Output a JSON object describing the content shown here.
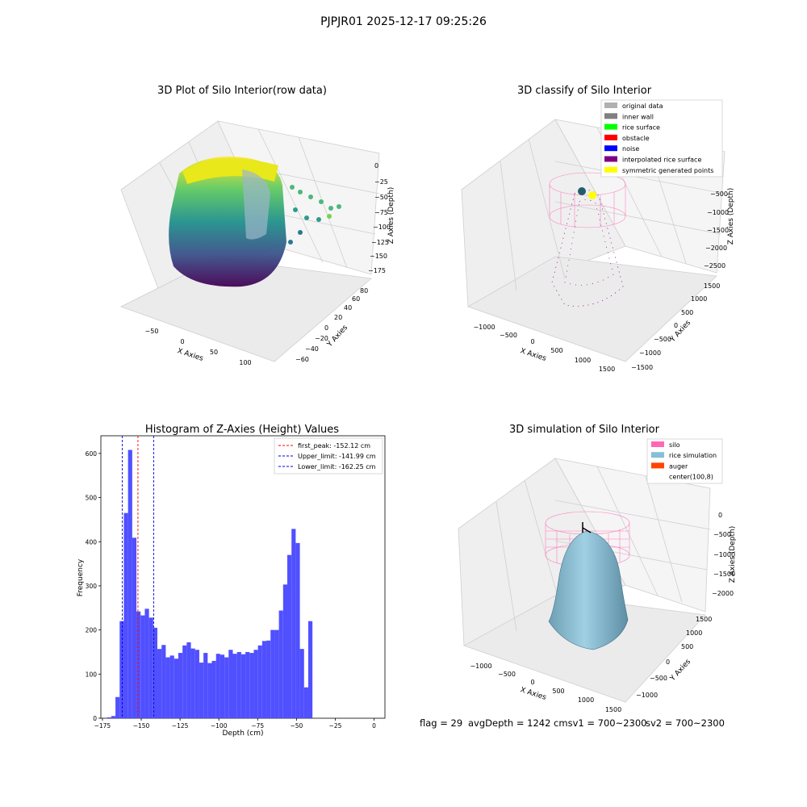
{
  "suptitle": "PJPJR01 2025-12-17 09:25:26",
  "footer": {
    "flag": "flag = 29",
    "avg_depth": "avgDepth = 1242 cmsv1 = 700~2300",
    "sv2": "sv2 = 700~2300"
  },
  "colors": {
    "hist_bar": "#4c4cff",
    "peak_line": "#ff0000",
    "limit_line": "#0000dd",
    "silo": "#ff69b4",
    "rice": "#87bfd6",
    "auger": "#ff4500"
  },
  "chart_data": [
    {
      "type": "scatter",
      "subtype": "3d",
      "title": "3D Plot of Silo Interior(row data)",
      "xlabel": "X Axies",
      "ylabel": "Y Axies",
      "zlabel": "Z Axies (Depth)",
      "x_ticks": [
        "−50",
        "0",
        "50",
        "100"
      ],
      "y_ticks": [
        "−60",
        "−40",
        "−20",
        "0",
        "20",
        "40",
        "60",
        "80"
      ],
      "z_ticks": [
        "0",
        "−25",
        "−50",
        "−75",
        "−100",
        "−125",
        "−150",
        "−175"
      ],
      "colormap": "viridis"
    },
    {
      "type": "scatter",
      "subtype": "3d",
      "title": "3D classify of Silo Interior",
      "zlabel": "Z Axies (Depth)",
      "xlabel": "X Axies",
      "ylabel": "Y Axies",
      "x_ticks": [
        "−1000",
        "−500",
        "0",
        "500",
        "1000",
        "1500"
      ],
      "y_ticks": [
        "−1500",
        "−1000",
        "−500",
        "0",
        "500",
        "1000",
        "1500"
      ],
      "z_ticks": [
        "−500",
        "−1000",
        "−1500",
        "−2000",
        "−2500"
      ],
      "legend_placement": "top-right",
      "legend": [
        {
          "label": "original data",
          "color": "#b0b0b0"
        },
        {
          "label": "inner wall",
          "color": "#808080"
        },
        {
          "label": "rice surface",
          "color": "#00ff00"
        },
        {
          "label": "obstacle",
          "color": "#ff0000"
        },
        {
          "label": "noise",
          "color": "#0000ff"
        },
        {
          "label": "interpolated rice surface",
          "color": "#800080"
        },
        {
          "label": "symmetric generated points",
          "color": "#ffff00"
        }
      ]
    },
    {
      "type": "bar",
      "subtype": "histogram",
      "title": "Histogram of Z-Axies (Height) Values",
      "xlabel": "Depth (cm)",
      "ylabel": "Frequency",
      "xlim": [
        -176,
        7
      ],
      "ylim": [
        0,
        640
      ],
      "x_ticks": [
        -175,
        -150,
        -125,
        -100,
        -75,
        -50,
        -25,
        0
      ],
      "y_ticks": [
        0,
        100,
        200,
        300,
        400,
        500,
        600
      ],
      "bin_start": -172,
      "bin_width": 2.7,
      "values": [
        2,
        5,
        48,
        220,
        465,
        608,
        409,
        242,
        233,
        248,
        228,
        205,
        157,
        166,
        138,
        142,
        135,
        148,
        165,
        172,
        158,
        155,
        126,
        148,
        125,
        130,
        146,
        144,
        138,
        155,
        146,
        150,
        145,
        150,
        148,
        155,
        165,
        175,
        176,
        200,
        200,
        244,
        303,
        370,
        429,
        397,
        157,
        70,
        220
      ],
      "lines": [
        {
          "value": -152.12,
          "label": "first_peak: -152.12 cm",
          "color": "#ff0000"
        },
        {
          "value": -141.99,
          "label": "Upper_limit: -141.99 cm",
          "color": "#0000dd"
        },
        {
          "value": -162.25,
          "label": "Lower_limit: -162.25 cm",
          "color": "#0000dd"
        }
      ],
      "legend_placement": "top-right"
    },
    {
      "type": "area",
      "subtype": "3d-surface",
      "title": "3D simulation of Silo Interior",
      "xlabel": "X Axies",
      "ylabel": "Y Axies",
      "zlabel": "Z Axies (Depth)",
      "x_ticks": [
        "−1000",
        "−500",
        "0",
        "500",
        "1000",
        "1500"
      ],
      "y_ticks": [
        "−1000",
        "−500",
        "0",
        "500",
        "1000",
        "1500"
      ],
      "z_ticks": [
        "0",
        "−500",
        "−1000",
        "−1500",
        "−2000"
      ],
      "legend_placement": "top-right",
      "legend": [
        {
          "label": "silo",
          "color": "#ff69b4"
        },
        {
          "label": "rice simulation",
          "color": "#87bfd6"
        },
        {
          "label": "auger",
          "color": "#ff4500"
        },
        {
          "label": "center(100,8)",
          "color": ""
        }
      ]
    }
  ]
}
